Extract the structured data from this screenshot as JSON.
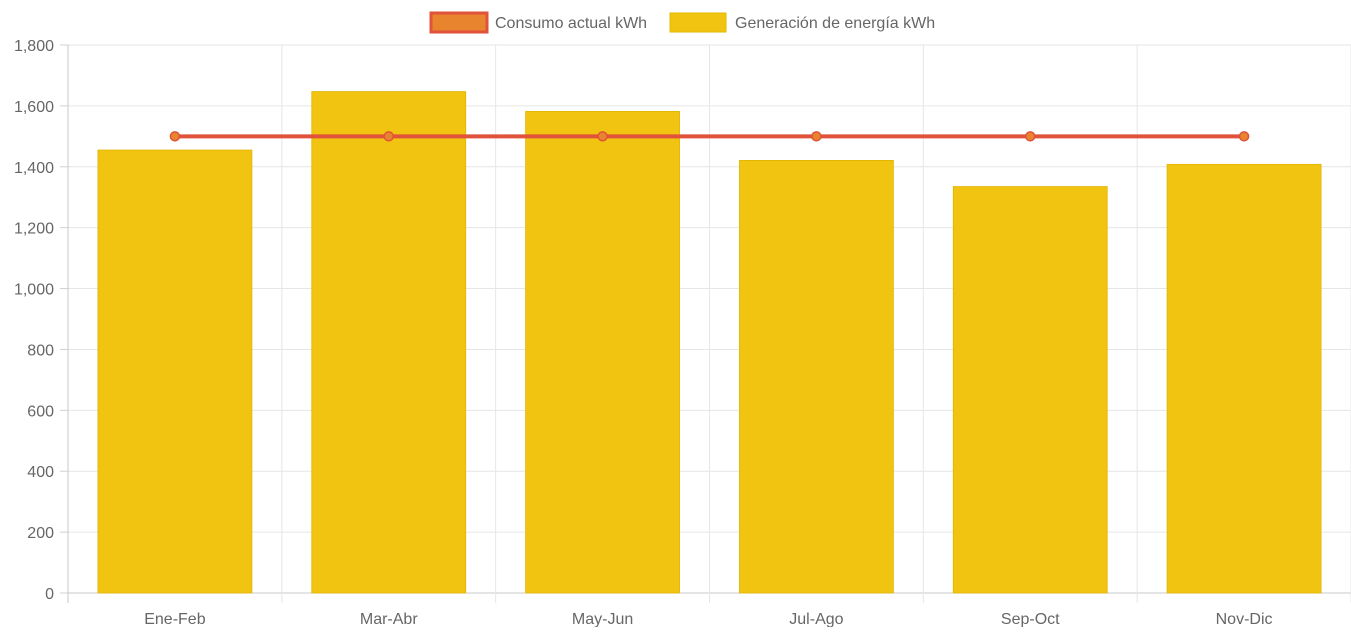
{
  "chart_data": {
    "type": "bar",
    "categories": [
      "Ene-Feb",
      "Mar-Abr",
      "May-Jun",
      "Jul-Ago",
      "Sep-Oct",
      "Nov-Dic"
    ],
    "series": [
      {
        "name": "Consumo actual kWh",
        "type": "line",
        "values": [
          1500,
          1500,
          1500,
          1500,
          1500,
          1500
        ],
        "color": "#e0523a",
        "point_color": "#e8842d"
      },
      {
        "name": "Generación de energía kWh",
        "type": "bar",
        "values": [
          1455,
          1647,
          1582,
          1421,
          1335,
          1408
        ],
        "color": "#f0c410"
      }
    ],
    "ylim": [
      0,
      1800
    ],
    "yticks": [
      0,
      200,
      400,
      600,
      800,
      1000,
      1200,
      1400,
      1600,
      1800
    ],
    "ytick_labels": [
      "0",
      "200",
      "400",
      "600",
      "800",
      "1,000",
      "1,200",
      "1,400",
      "1,600",
      "1,800"
    ],
    "grid": true,
    "legend_position": "top-center"
  }
}
